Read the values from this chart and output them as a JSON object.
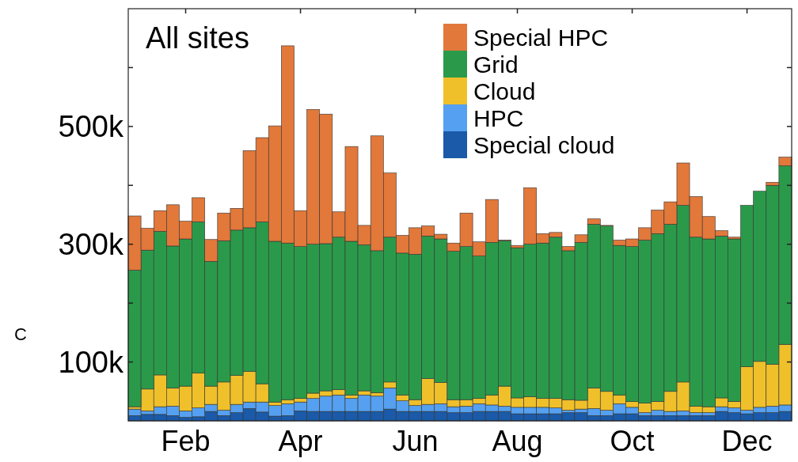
{
  "chart_data": {
    "type": "bar",
    "title": "All sites",
    "stacked": true,
    "annotations": [
      "C"
    ],
    "categories": [
      null,
      null,
      null,
      null,
      "Feb",
      null,
      null,
      null,
      null,
      null,
      null,
      null,
      null,
      "Apr",
      null,
      null,
      null,
      null,
      null,
      null,
      null,
      null,
      "Jun",
      null,
      null,
      null,
      null,
      null,
      null,
      null,
      "Aug",
      null,
      null,
      null,
      null,
      null,
      null,
      null,
      null,
      "Oct",
      null,
      null,
      null,
      null,
      null,
      null,
      null,
      null,
      "Dec",
      null,
      null,
      null
    ],
    "ylim": [
      0,
      700000
    ],
    "yticks": [
      {
        "value": 100000,
        "label": "100k"
      },
      {
        "value": 200000,
        "label": null
      },
      {
        "value": 300000,
        "label": "300k"
      },
      {
        "value": 400000,
        "label": null
      },
      {
        "value": 500000,
        "label": "500k"
      },
      {
        "value": 600000,
        "label": null
      }
    ],
    "legend": "top right",
    "series": [
      {
        "name": "Special cloud",
        "color": "#1a5aa8",
        "values": [
          9000,
          11000,
          11000,
          9000,
          6000,
          7000,
          16000,
          9000,
          14000,
          21000,
          15000,
          8000,
          9000,
          17000,
          16000,
          16000,
          16000,
          16000,
          16000,
          16000,
          20000,
          16000,
          16000,
          16000,
          16000,
          14000,
          14000,
          16000,
          16000,
          16000,
          12000,
          12000,
          12000,
          12000,
          14000,
          14000,
          9000,
          9000,
          12000,
          12000,
          9000,
          9000,
          9000,
          9000,
          9000,
          9000,
          16000,
          14000,
          12000,
          14000,
          14000,
          16000
        ]
      },
      {
        "name": "HPC",
        "color": "#55a0f0",
        "values": [
          11000,
          6000,
          13000,
          16000,
          11000,
          15000,
          12000,
          9000,
          14000,
          11000,
          17000,
          18000,
          20000,
          15000,
          22000,
          26000,
          28000,
          22000,
          28000,
          26000,
          36000,
          18000,
          10000,
          12000,
          13000,
          10000,
          11000,
          13000,
          11000,
          9000,
          11000,
          11000,
          11000,
          10000,
          4000,
          6000,
          12000,
          9000,
          17000,
          11000,
          5000,
          9000,
          7000,
          8000,
          5000,
          5000,
          8000,
          8000,
          6000,
          9000,
          11000,
          11000
        ]
      },
      {
        "name": "Cloud",
        "color": "#f0c02a",
        "values": [
          4000,
          37000,
          54000,
          31000,
          42000,
          59000,
          31000,
          48000,
          49000,
          52000,
          31000,
          6000,
          7000,
          6000,
          9000,
          9000,
          9000,
          6000,
          7000,
          6000,
          10000,
          10000,
          10000,
          44000,
          36000,
          12000,
          11000,
          9000,
          17000,
          34000,
          16000,
          18000,
          15000,
          16000,
          18000,
          15000,
          35000,
          32000,
          15000,
          10000,
          16000,
          15000,
          34000,
          49000,
          11000,
          10000,
          15000,
          11000,
          74000,
          78000,
          71000,
          103000
        ]
      },
      {
        "name": "Grid",
        "color": "#2a9a4a",
        "values": [
          232000,
          236000,
          244000,
          241000,
          250000,
          257000,
          212000,
          240000,
          247000,
          244000,
          275000,
          273000,
          266000,
          258000,
          253000,
          250000,
          259000,
          261000,
          248000,
          241000,
          246000,
          241000,
          247000,
          242000,
          244000,
          252000,
          260000,
          242000,
          259000,
          247000,
          255000,
          259000,
          264000,
          274000,
          253000,
          268000,
          278000,
          281000,
          254000,
          263000,
          277000,
          285000,
          284000,
          300000,
          287000,
          285000,
          275000,
          276000,
          274000,
          289000,
          304000,
          303000
        ]
      },
      {
        "name": "Special HPC",
        "color": "#e2783a",
        "values": [
          92000,
          37000,
          35000,
          70000,
          30000,
          41000,
          37000,
          47000,
          37000,
          131000,
          143000,
          196000,
          335000,
          61000,
          229000,
          220000,
          43000,
          161000,
          33000,
          195000,
          109000,
          30000,
          45000,
          17000,
          8000,
          14000,
          57000,
          24000,
          73000,
          1000,
          4000,
          96000,
          16000,
          8000,
          7000,
          13000,
          9000,
          1000,
          9000,
          13000,
          21000,
          40000,
          38000,
          72000,
          69000,
          38000,
          9000,
          3000,
          0,
          0,
          5000,
          15000
        ]
      }
    ]
  }
}
